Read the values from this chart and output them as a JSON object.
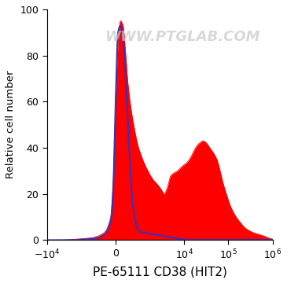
{
  "xlabel": "PE-65111 CD38 (HIT2)",
  "ylabel": "Relative cell number",
  "watermark": "WWW.PTGLAB.COM",
  "ylim": [
    0,
    100
  ],
  "yticks": [
    0,
    20,
    40,
    60,
    80,
    100
  ],
  "background_color": "#ffffff",
  "red_fill_color": "#ff0000",
  "blue_line_color": "#3333bb",
  "xlabel_fontsize": 11,
  "ylabel_fontsize": 9.5,
  "tick_fontsize": 9,
  "watermark_fontsize": 13,
  "watermark_color": "#c8c8c8",
  "watermark_alpha": 0.7,
  "linthresh": 1000,
  "linscale": 0.5
}
